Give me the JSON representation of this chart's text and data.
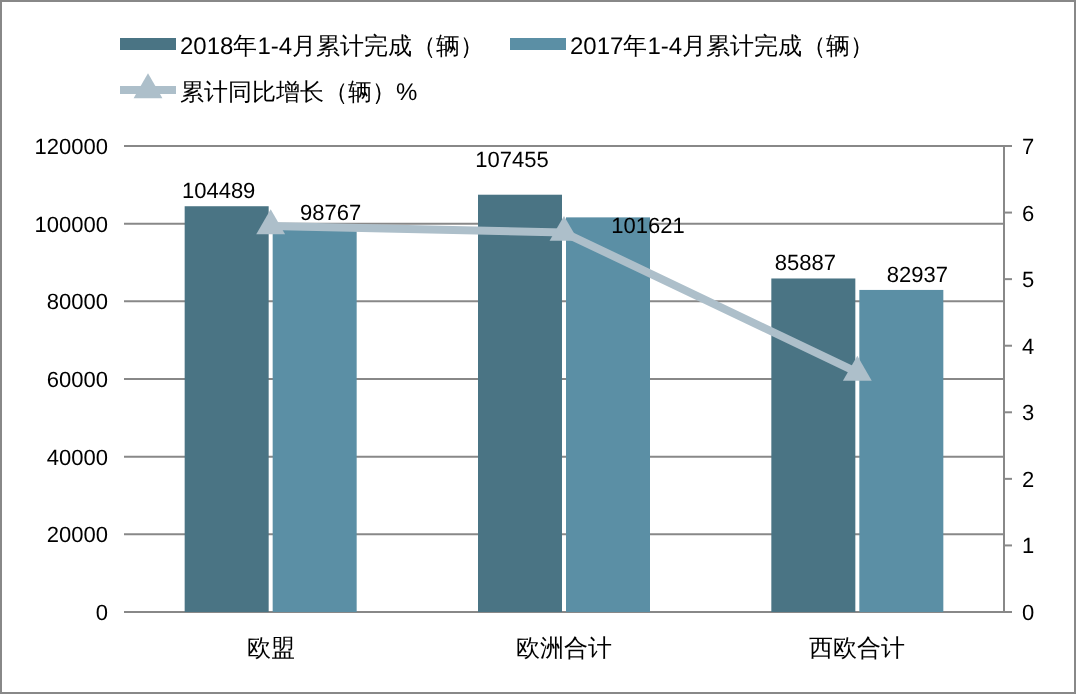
{
  "chart_data": {
    "type": "bar",
    "categories": [
      "欧盟",
      "欧洲合计",
      "西欧合计"
    ],
    "series": [
      {
        "name": "2018年1-4月累计完成（辆）",
        "color": "#4a7484",
        "values": [
          104489,
          107455,
          85887
        ],
        "value_labels": [
          "104489",
          "107455",
          "85887"
        ]
      },
      {
        "name": "2017年1-4月累计完成（辆）",
        "color": "#5b8fa5",
        "values": [
          98767,
          101621,
          82937
        ],
        "value_labels": [
          "98767",
          "101621",
          "82937"
        ]
      },
      {
        "name": "累计同比增长（辆）%",
        "type": "line",
        "axis": "y2",
        "color": "#adbfca",
        "marker": "triangle",
        "values": [
          5.8,
          5.7,
          3.6
        ]
      }
    ],
    "ylim": [
      0,
      120000
    ],
    "yticks": [
      0,
      20000,
      40000,
      60000,
      80000,
      100000,
      120000
    ],
    "y2lim": [
      0,
      7
    ],
    "y2ticks": [
      0,
      1,
      2,
      3,
      4,
      5,
      6,
      7
    ],
    "grid": "y",
    "legend": "top"
  }
}
